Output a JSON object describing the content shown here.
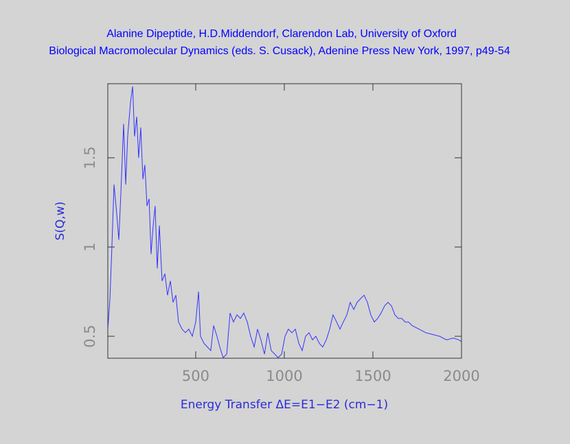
{
  "chart_data": {
    "type": "line",
    "title": "Alanine Dipeptide, H.D.Middendorf, Clarendon Lab, University of Oxford",
    "subtitle": "Biological Macromolecular Dynamics (eds. S. Cusack), Adenine Press New York, 1997, p49-54",
    "x_label": "Energy Transfer ΔE=E1−E2 (cm−1)",
    "y_label": "S(Q,w)",
    "xlim": [
      4,
      2000
    ],
    "xticks": [
      500,
      1000,
      1500,
      2000
    ],
    "ylim": [
      0.377,
      1.915
    ],
    "yticks": [
      0.5,
      1,
      1.5
    ],
    "series": [
      {
        "name": "S(Q,w)",
        "color": "#3333ff",
        "x": [
          4,
          16,
          27,
          39,
          54,
          66,
          78,
          93,
          105,
          116,
          132,
          144,
          155,
          167,
          178,
          190,
          202,
          213,
          225,
          237,
          248,
          260,
          271,
          283,
          295,
          310,
          326,
          341,
          357,
          372,
          388,
          403,
          423,
          442,
          461,
          481,
          500,
          516,
          527,
          547,
          566,
          585,
          601,
          620,
          636,
          655,
          675,
          694,
          713,
          733,
          752,
          771,
          791,
          810,
          830,
          849,
          868,
          888,
          907,
          926,
          946,
          965,
          985,
          1004,
          1023,
          1043,
          1062,
          1082,
          1101,
          1120,
          1140,
          1159,
          1178,
          1198,
          1217,
          1237,
          1256,
          1275,
          1295,
          1314,
          1333,
          1353,
          1372,
          1392,
          1411,
          1430,
          1450,
          1469,
          1488,
          1508,
          1527,
          1546,
          1566,
          1585,
          1605,
          1624,
          1643,
          1663,
          1682,
          1701,
          1721,
          1760,
          1798,
          1837,
          1876,
          1915,
          1954,
          1985,
          2000
        ],
        "values": [
          0.54,
          0.71,
          1.0,
          1.35,
          1.19,
          1.04,
          1.31,
          1.69,
          1.35,
          1.62,
          1.81,
          1.9,
          1.62,
          1.73,
          1.5,
          1.67,
          1.38,
          1.46,
          1.23,
          1.27,
          0.96,
          1.12,
          1.23,
          0.88,
          1.12,
          0.81,
          0.85,
          0.73,
          0.81,
          0.69,
          0.73,
          0.58,
          0.54,
          0.52,
          0.54,
          0.5,
          0.58,
          0.75,
          0.5,
          0.46,
          0.44,
          0.42,
          0.56,
          0.5,
          0.44,
          0.38,
          0.4,
          0.63,
          0.58,
          0.62,
          0.6,
          0.63,
          0.58,
          0.5,
          0.44,
          0.54,
          0.48,
          0.4,
          0.52,
          0.42,
          0.4,
          0.38,
          0.4,
          0.5,
          0.54,
          0.52,
          0.54,
          0.46,
          0.42,
          0.5,
          0.52,
          0.48,
          0.5,
          0.46,
          0.44,
          0.48,
          0.54,
          0.62,
          0.58,
          0.54,
          0.58,
          0.62,
          0.69,
          0.65,
          0.69,
          0.71,
          0.73,
          0.69,
          0.62,
          0.58,
          0.6,
          0.63,
          0.67,
          0.69,
          0.67,
          0.62,
          0.6,
          0.6,
          0.58,
          0.58,
          0.56,
          0.54,
          0.52,
          0.51,
          0.5,
          0.48,
          0.49,
          0.48,
          0.47
        ]
      }
    ]
  }
}
